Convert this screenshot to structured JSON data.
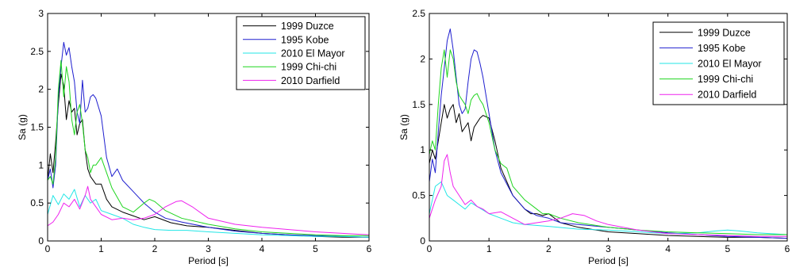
{
  "chart_data": [
    {
      "type": "line",
      "xlabel": "Period [s]",
      "ylabel": "Sa (g)",
      "xlim": [
        0,
        6
      ],
      "ylim": [
        0,
        3
      ],
      "xticks": [
        "0",
        "1",
        "2",
        "3",
        "4",
        "5",
        "6"
      ],
      "yticks": [
        "0",
        "0.5",
        "1",
        "1.5",
        "2",
        "2.5",
        "3"
      ],
      "grid": false,
      "legend_position": "top-right",
      "series": [
        {
          "name": "1999 Duzce",
          "color": "#000000",
          "x": [
            0,
            0.05,
            0.1,
            0.15,
            0.2,
            0.25,
            0.3,
            0.35,
            0.4,
            0.45,
            0.5,
            0.55,
            0.6,
            0.65,
            0.7,
            0.75,
            0.8,
            0.9,
            1.0,
            1.1,
            1.2,
            1.4,
            1.6,
            1.8,
            2.0,
            2.3,
            2.6,
            3.0,
            3.5,
            4.0,
            4.5,
            5.0,
            5.5,
            6.0
          ],
          "y": [
            0.8,
            1.15,
            0.9,
            1.3,
            1.8,
            2.2,
            2.05,
            1.6,
            1.85,
            1.7,
            1.75,
            1.4,
            1.55,
            1.6,
            1.2,
            0.95,
            0.85,
            0.75,
            0.75,
            0.55,
            0.45,
            0.38,
            0.33,
            0.28,
            0.32,
            0.24,
            0.2,
            0.18,
            0.14,
            0.1,
            0.08,
            0.06,
            0.05,
            0.05
          ]
        },
        {
          "name": "1995 Kobe",
          "color": "#1f1fcf",
          "x": [
            0,
            0.05,
            0.1,
            0.15,
            0.2,
            0.25,
            0.3,
            0.35,
            0.4,
            0.45,
            0.5,
            0.55,
            0.6,
            0.65,
            0.7,
            0.75,
            0.8,
            0.85,
            0.9,
            1.0,
            1.1,
            1.2,
            1.3,
            1.4,
            1.6,
            1.8,
            2.0,
            2.2,
            2.5,
            3.0,
            3.5,
            4.0,
            4.5,
            5.0,
            5.5,
            6.0
          ],
          "y": [
            0.8,
            0.95,
            0.7,
            1.0,
            1.9,
            2.3,
            2.62,
            2.45,
            2.55,
            2.3,
            2.1,
            1.7,
            1.55,
            2.12,
            1.7,
            1.75,
            1.9,
            1.93,
            1.88,
            1.65,
            1.1,
            0.85,
            0.95,
            0.8,
            0.65,
            0.5,
            0.38,
            0.3,
            0.25,
            0.18,
            0.13,
            0.1,
            0.08,
            0.07,
            0.06,
            0.05
          ]
        },
        {
          "name": "2010 El Mayor",
          "color": "#22e6e6",
          "x": [
            0,
            0.1,
            0.2,
            0.3,
            0.4,
            0.5,
            0.6,
            0.7,
            0.8,
            0.9,
            1.0,
            1.2,
            1.4,
            1.6,
            1.8,
            2.0,
            2.3,
            2.6,
            3.0,
            3.5,
            4.0,
            4.5,
            5.0,
            5.5,
            6.0
          ],
          "y": [
            0.35,
            0.6,
            0.48,
            0.62,
            0.55,
            0.68,
            0.45,
            0.6,
            0.5,
            0.55,
            0.4,
            0.35,
            0.3,
            0.22,
            0.18,
            0.15,
            0.14,
            0.14,
            0.12,
            0.1,
            0.08,
            0.07,
            0.06,
            0.06,
            0.05
          ]
        },
        {
          "name": "1999 Chi-chi",
          "color": "#1fd51f",
          "x": [
            0,
            0.05,
            0.1,
            0.15,
            0.2,
            0.25,
            0.3,
            0.35,
            0.4,
            0.45,
            0.5,
            0.55,
            0.6,
            0.65,
            0.7,
            0.75,
            0.8,
            0.85,
            0.9,
            1.0,
            1.1,
            1.2,
            1.4,
            1.6,
            1.8,
            1.9,
            2.0,
            2.2,
            2.5,
            3.0,
            3.5,
            4.0,
            4.5,
            5.0,
            5.5,
            6.0
          ],
          "y": [
            0.8,
            0.85,
            0.75,
            1.1,
            2.0,
            2.38,
            1.9,
            2.3,
            2.1,
            1.6,
            1.4,
            1.7,
            1.8,
            1.55,
            1.2,
            1.1,
            0.9,
            1.0,
            1.0,
            1.1,
            0.9,
            0.7,
            0.45,
            0.38,
            0.5,
            0.55,
            0.52,
            0.4,
            0.3,
            0.22,
            0.16,
            0.12,
            0.1,
            0.08,
            0.07,
            0.07
          ]
        },
        {
          "name": "2010 Darfield",
          "color": "#ee22ee",
          "x": [
            0,
            0.1,
            0.2,
            0.3,
            0.4,
            0.5,
            0.6,
            0.7,
            0.75,
            0.8,
            0.9,
            1.0,
            1.2,
            1.4,
            1.6,
            1.8,
            2.0,
            2.2,
            2.4,
            2.5,
            2.7,
            3.0,
            3.5,
            4.0,
            4.5,
            5.0,
            5.5,
            6.0
          ],
          "y": [
            0.2,
            0.25,
            0.35,
            0.5,
            0.45,
            0.55,
            0.42,
            0.6,
            0.72,
            0.55,
            0.45,
            0.35,
            0.28,
            0.3,
            0.28,
            0.3,
            0.35,
            0.45,
            0.52,
            0.53,
            0.45,
            0.3,
            0.22,
            0.18,
            0.15,
            0.12,
            0.1,
            0.08
          ]
        }
      ]
    },
    {
      "type": "line",
      "xlabel": "Period [s]",
      "ylabel": "Sa (g)",
      "xlim": [
        0,
        6
      ],
      "ylim": [
        0,
        2.5
      ],
      "xticks": [
        "0",
        "1",
        "2",
        "3",
        "4",
        "5",
        "6"
      ],
      "yticks": [
        "0",
        "0.5",
        "1",
        "1.5",
        "2",
        "2.5"
      ],
      "grid": false,
      "legend_position": "top-right",
      "series": [
        {
          "name": "1999 Duzce",
          "color": "#000000",
          "x": [
            0,
            0.05,
            0.1,
            0.15,
            0.2,
            0.25,
            0.3,
            0.35,
            0.4,
            0.45,
            0.5,
            0.55,
            0.6,
            0.65,
            0.7,
            0.75,
            0.8,
            0.85,
            0.9,
            1.0,
            1.1,
            1.2,
            1.4,
            1.6,
            1.7,
            1.8,
            1.9,
            2.0,
            2.2,
            2.5,
            3.0,
            3.5,
            4.0,
            4.5,
            5.0,
            5.5,
            6.0
          ],
          "y": [
            0.85,
            1.0,
            0.9,
            1.1,
            1.3,
            1.5,
            1.35,
            1.45,
            1.5,
            1.3,
            1.4,
            1.2,
            1.25,
            1.3,
            1.1,
            1.25,
            1.3,
            1.35,
            1.38,
            1.35,
            1.1,
            0.8,
            0.5,
            0.35,
            0.3,
            0.3,
            0.28,
            0.3,
            0.2,
            0.15,
            0.1,
            0.08,
            0.06,
            0.05,
            0.04,
            0.04,
            0.03
          ]
        },
        {
          "name": "1995 Kobe",
          "color": "#1f1fcf",
          "x": [
            0,
            0.05,
            0.1,
            0.15,
            0.2,
            0.25,
            0.3,
            0.35,
            0.4,
            0.45,
            0.5,
            0.55,
            0.6,
            0.65,
            0.7,
            0.75,
            0.8,
            0.85,
            0.9,
            1.0,
            1.1,
            1.2,
            1.4,
            1.6,
            1.8,
            2.0,
            2.2,
            2.5,
            3.0,
            3.5,
            4.0,
            4.5,
            5.0,
            5.5,
            6.0
          ],
          "y": [
            0.65,
            0.9,
            0.75,
            1.2,
            1.6,
            1.9,
            2.2,
            2.33,
            2.1,
            1.8,
            1.5,
            1.4,
            1.45,
            1.75,
            2.0,
            2.1,
            2.08,
            1.95,
            1.8,
            1.4,
            1.0,
            0.75,
            0.5,
            0.35,
            0.28,
            0.25,
            0.2,
            0.18,
            0.15,
            0.12,
            0.09,
            0.07,
            0.05,
            0.04,
            0.03
          ]
        },
        {
          "name": "2010 El Mayor",
          "color": "#22e6e6",
          "x": [
            0,
            0.1,
            0.2,
            0.3,
            0.4,
            0.5,
            0.6,
            0.7,
            0.8,
            1.0,
            1.2,
            1.4,
            1.6,
            2.0,
            2.5,
            3.0,
            3.5,
            4.0,
            4.5,
            4.8,
            5.0,
            5.2,
            5.5,
            6.0
          ],
          "y": [
            0.3,
            0.6,
            0.65,
            0.5,
            0.45,
            0.4,
            0.35,
            0.42,
            0.38,
            0.3,
            0.25,
            0.2,
            0.18,
            0.16,
            0.13,
            0.12,
            0.1,
            0.08,
            0.09,
            0.11,
            0.12,
            0.11,
            0.09,
            0.07
          ]
        },
        {
          "name": "1999 Chi-chi",
          "color": "#1fd51f",
          "x": [
            0,
            0.05,
            0.1,
            0.15,
            0.2,
            0.25,
            0.3,
            0.35,
            0.4,
            0.45,
            0.5,
            0.55,
            0.6,
            0.65,
            0.7,
            0.75,
            0.8,
            0.85,
            0.9,
            1.0,
            1.1,
            1.2,
            1.3,
            1.4,
            1.6,
            1.8,
            1.9,
            2.0,
            2.2,
            2.5,
            3.0,
            3.5,
            4.0,
            4.5,
            5.0,
            5.5,
            6.0
          ],
          "y": [
            0.95,
            1.1,
            1.0,
            1.5,
            1.9,
            2.1,
            1.8,
            2.1,
            2.0,
            1.75,
            1.6,
            1.55,
            1.5,
            1.4,
            1.55,
            1.6,
            1.62,
            1.55,
            1.5,
            1.3,
            1.0,
            0.85,
            0.8,
            0.6,
            0.45,
            0.35,
            0.3,
            0.3,
            0.25,
            0.2,
            0.15,
            0.12,
            0.1,
            0.09,
            0.08,
            0.07,
            0.07
          ]
        },
        {
          "name": "2010 Darfield",
          "color": "#ee22ee",
          "x": [
            0,
            0.1,
            0.2,
            0.25,
            0.3,
            0.35,
            0.4,
            0.5,
            0.6,
            0.7,
            0.8,
            0.9,
            1.0,
            1.2,
            1.4,
            1.6,
            1.8,
            2.0,
            2.2,
            2.4,
            2.6,
            2.8,
            3.0,
            3.5,
            4.0,
            4.5,
            5.0,
            5.5,
            6.0
          ],
          "y": [
            0.25,
            0.45,
            0.6,
            0.88,
            0.95,
            0.75,
            0.6,
            0.5,
            0.4,
            0.45,
            0.38,
            0.35,
            0.3,
            0.32,
            0.25,
            0.18,
            0.2,
            0.22,
            0.25,
            0.3,
            0.28,
            0.22,
            0.18,
            0.12,
            0.08,
            0.07,
            0.06,
            0.05,
            0.05
          ]
        }
      ]
    }
  ]
}
